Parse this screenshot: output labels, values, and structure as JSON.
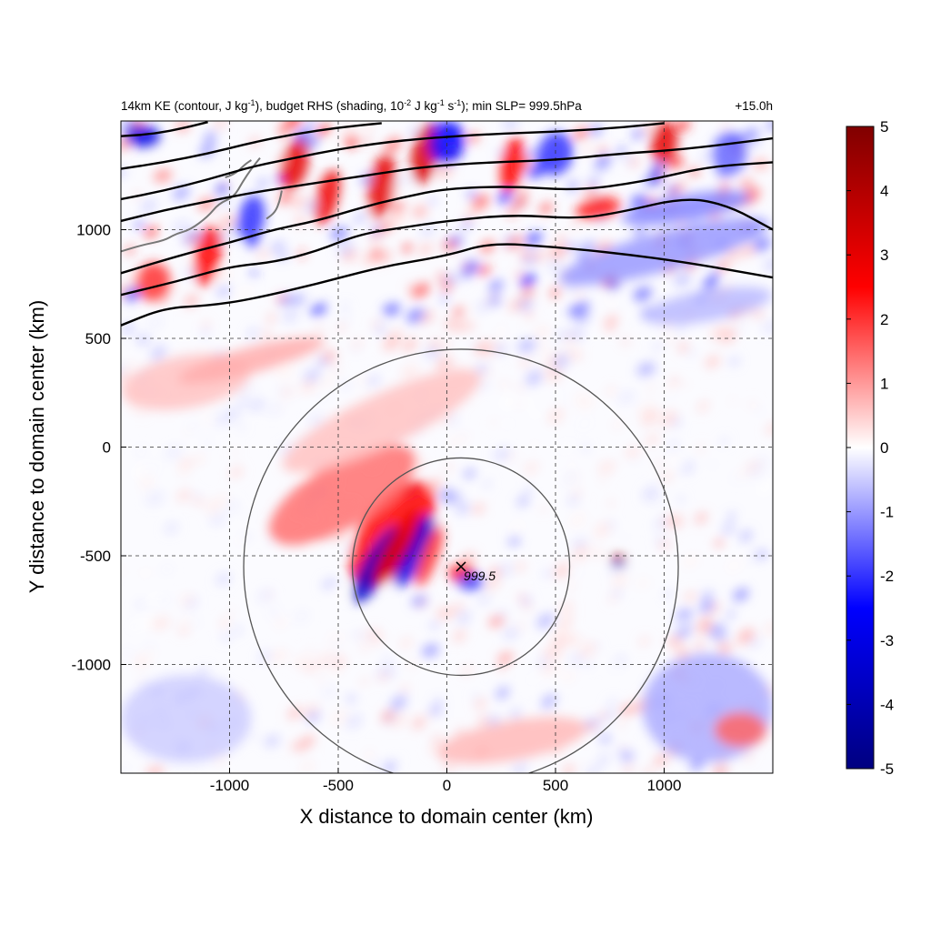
{
  "chart_data": {
    "type": "heatmap",
    "title": "14km KE (contour, J kg⁻¹), budget RHS (shading, 10⁻² J kg⁻¹ s⁻¹); min SLP= 999.5hPa",
    "title_parts": {
      "a": "14km KE (contour, J kg",
      "a_sup": "-1",
      "b": "), budget RHS (shading, 10",
      "b_sup": "-2",
      "c": " J kg",
      "c_sup": "-1",
      "d": " s",
      "d_sup": "-1",
      "e": "); min SLP= 999.5hPa"
    },
    "time_label": "+15.0h",
    "xlabel": "X distance to domain center (km)",
    "ylabel": "Y distance to domain center (km)",
    "xlim": [
      -1500,
      1500
    ],
    "ylim": [
      -1500,
      1500
    ],
    "xticks": [
      -1000,
      -500,
      0,
      500,
      1000
    ],
    "yticks": [
      -1000,
      -500,
      0,
      500,
      1000
    ],
    "grid": true,
    "colorbar": {
      "range": [
        -5,
        5
      ],
      "ticks": [
        5,
        4,
        3,
        2,
        1,
        0,
        -1,
        -2,
        -3,
        -4,
        -5
      ],
      "colors": [
        "#000080",
        "#0000ff",
        "#ffffff",
        "#ff0000",
        "#800000"
      ],
      "placement": "right"
    },
    "center_marker": {
      "x": 65,
      "y": -550,
      "label": "999.5"
    },
    "range_circles_km": [
      500,
      1000
    ],
    "ke_contours": [
      [
        [
          -1500,
          560
        ],
        [
          -1300,
          640
        ],
        [
          -1100,
          650
        ],
        [
          -900,
          680
        ],
        [
          -600,
          750
        ],
        [
          -300,
          830
        ],
        [
          0,
          880
        ],
        [
          200,
          940
        ],
        [
          500,
          920
        ],
        [
          800,
          890
        ],
        [
          1100,
          850
        ],
        [
          1500,
          780
        ]
      ],
      [
        [
          -1500,
          700
        ],
        [
          -1250,
          760
        ],
        [
          -1000,
          830
        ],
        [
          -800,
          850
        ],
        [
          -600,
          900
        ],
        [
          -400,
          980
        ],
        [
          -200,
          1010
        ],
        [
          0,
          1040
        ],
        [
          300,
          1070
        ],
        [
          600,
          1050
        ],
        [
          800,
          1080
        ],
        [
          1100,
          1150
        ],
        [
          1300,
          1110
        ],
        [
          1500,
          1000
        ]
      ],
      [
        [
          -1500,
          800
        ],
        [
          -1200,
          890
        ],
        [
          -1000,
          940
        ],
        [
          -800,
          1000
        ],
        [
          -600,
          1040
        ],
        [
          -400,
          1100
        ],
        [
          -200,
          1150
        ],
        [
          0,
          1190
        ],
        [
          300,
          1200
        ],
        [
          600,
          1180
        ],
        [
          900,
          1220
        ],
        [
          1200,
          1290
        ],
        [
          1500,
          1310
        ]
      ],
      [
        [
          -1500,
          1040
        ],
        [
          -1300,
          1090
        ],
        [
          -1100,
          1130
        ],
        [
          -900,
          1170
        ],
        [
          -700,
          1200
        ],
        [
          -500,
          1230
        ],
        [
          -300,
          1260
        ],
        [
          -100,
          1290
        ],
        [
          200,
          1310
        ],
        [
          500,
          1320
        ],
        [
          800,
          1350
        ],
        [
          1100,
          1370
        ],
        [
          1500,
          1420
        ]
      ],
      [
        [
          -1500,
          1140
        ],
        [
          -1300,
          1180
        ],
        [
          -1100,
          1230
        ],
        [
          -900,
          1290
        ],
        [
          -700,
          1330
        ],
        [
          -500,
          1370
        ],
        [
          -300,
          1400
        ],
        [
          -100,
          1420
        ],
        [
          200,
          1440
        ],
        [
          500,
          1450
        ],
        [
          800,
          1470
        ],
        [
          1000,
          1490
        ]
      ],
      [
        [
          -1500,
          1280
        ],
        [
          -1300,
          1310
        ],
        [
          -1100,
          1350
        ],
        [
          -900,
          1400
        ],
        [
          -700,
          1440
        ],
        [
          -500,
          1470
        ],
        [
          -300,
          1490
        ]
      ],
      [
        [
          -1500,
          1430
        ],
        [
          -1350,
          1440
        ],
        [
          -1200,
          1470
        ],
        [
          -1100,
          1495
        ]
      ]
    ],
    "anomalies": [
      {
        "x": -250,
        "y": -400,
        "rx": 280,
        "ry": 140,
        "rot": -55,
        "v": 2.5
      },
      {
        "x": -320,
        "y": -540,
        "rx": 200,
        "ry": 60,
        "rot": -60,
        "v": -3.5
      },
      {
        "x": -150,
        "y": -480,
        "rx": 180,
        "ry": 55,
        "rot": -65,
        "v": -3.0
      },
      {
        "x": -230,
        "y": -460,
        "rx": 200,
        "ry": 50,
        "rot": -60,
        "v": 3.0
      },
      {
        "x": -80,
        "y": -500,
        "rx": 150,
        "ry": 40,
        "rot": -70,
        "v": 2.0
      },
      {
        "x": 70,
        "y": -580,
        "rx": 60,
        "ry": 45,
        "rot": 0,
        "v": 2.5
      },
      {
        "x": 110,
        "y": -620,
        "rx": 60,
        "ry": 40,
        "rot": 0,
        "v": -1.8
      },
      {
        "x": 790,
        "y": -510,
        "rx": 35,
        "ry": 18,
        "rot": 0,
        "v": 4.0
      },
      {
        "x": 790,
        "y": -540,
        "rx": 30,
        "ry": 15,
        "rot": 0,
        "v": -3.5
      },
      {
        "x": -480,
        "y": -220,
        "rx": 380,
        "ry": 150,
        "rot": -30,
        "v": 1.4
      },
      {
        "x": -300,
        "y": 120,
        "rx": 500,
        "ry": 120,
        "rot": -25,
        "v": 0.6
      },
      {
        "x": 1000,
        "y": 900,
        "rx": 500,
        "ry": 90,
        "rot": -15,
        "v": -1.0
      },
      {
        "x": 1200,
        "y": 650,
        "rx": 300,
        "ry": 70,
        "rot": -10,
        "v": -0.7
      },
      {
        "x": 1200,
        "y": -1200,
        "rx": 300,
        "ry": 250,
        "rot": 0,
        "v": -0.8
      },
      {
        "x": 300,
        "y": -1350,
        "rx": 350,
        "ry": 90,
        "rot": -10,
        "v": 0.7
      },
      {
        "x": -1200,
        "y": -1250,
        "rx": 300,
        "ry": 200,
        "rot": 0,
        "v": -0.5
      },
      {
        "x": 1350,
        "y": -1300,
        "rx": 120,
        "ry": 80,
        "rot": 0,
        "v": 1.5
      },
      {
        "x": -1200,
        "y": 300,
        "rx": 300,
        "ry": 120,
        "rot": -10,
        "v": 0.6
      },
      {
        "x": -900,
        "y": 400,
        "rx": 350,
        "ry": 60,
        "rot": -15,
        "v": 0.8
      },
      {
        "x": -300,
        "y": 1200,
        "rx": 60,
        "ry": 150,
        "rot": 10,
        "v": 3.0
      },
      {
        "x": -100,
        "y": 1350,
        "rx": 60,
        "ry": 140,
        "rot": 10,
        "v": 3.2
      },
      {
        "x": 0,
        "y": 1400,
        "rx": 80,
        "ry": 100,
        "rot": 10,
        "v": -2.5
      },
      {
        "x": -550,
        "y": 1150,
        "rx": 50,
        "ry": 130,
        "rot": 15,
        "v": 2.8
      },
      {
        "x": -700,
        "y": 1300,
        "rx": 60,
        "ry": 120,
        "rot": 15,
        "v": 3.0
      },
      {
        "x": -1100,
        "y": 880,
        "rx": 60,
        "ry": 140,
        "rot": 10,
        "v": 2.5
      },
      {
        "x": -900,
        "y": 1050,
        "rx": 60,
        "ry": 110,
        "rot": 10,
        "v": -2.0
      },
      {
        "x": 300,
        "y": 1300,
        "rx": 50,
        "ry": 130,
        "rot": 10,
        "v": 2.5
      },
      {
        "x": 500,
        "y": 1350,
        "rx": 80,
        "ry": 100,
        "rot": 10,
        "v": -2.0
      },
      {
        "x": 1000,
        "y": 1400,
        "rx": 60,
        "ry": 100,
        "rot": 5,
        "v": 3.0
      },
      {
        "x": 1300,
        "y": 1350,
        "rx": 80,
        "ry": 100,
        "rot": 5,
        "v": -1.5
      },
      {
        "x": -1400,
        "y": 1430,
        "rx": 80,
        "ry": 50,
        "rot": 0,
        "v": -3.0
      },
      {
        "x": -1350,
        "y": 760,
        "rx": 80,
        "ry": 90,
        "rot": 0,
        "v": 2.0
      },
      {
        "x": 1100,
        "y": 1100,
        "rx": 300,
        "ry": 60,
        "rot": -10,
        "v": -1.2
      },
      {
        "x": 700,
        "y": 1100,
        "rx": 100,
        "ry": 50,
        "rot": -10,
        "v": 2.2
      }
    ],
    "noise_seed": 7,
    "coast_color": "#777777",
    "coast_paths": [
      [
        [
          -1500,
          900
        ],
        [
          -1400,
          930
        ],
        [
          -1300,
          950
        ],
        [
          -1250,
          980
        ],
        [
          -1180,
          1000
        ],
        [
          -1100,
          1060
        ],
        [
          -1050,
          1120
        ],
        [
          -980,
          1150
        ],
        [
          -940,
          1220
        ],
        [
          -900,
          1280
        ],
        [
          -860,
          1330
        ]
      ],
      [
        [
          -1020,
          1240
        ],
        [
          -970,
          1260
        ],
        [
          -930,
          1300
        ],
        [
          -900,
          1320
        ]
      ],
      [
        [
          -830,
          1050
        ],
        [
          -790,
          1080
        ],
        [
          -770,
          1130
        ],
        [
          -760,
          1180
        ]
      ]
    ]
  }
}
